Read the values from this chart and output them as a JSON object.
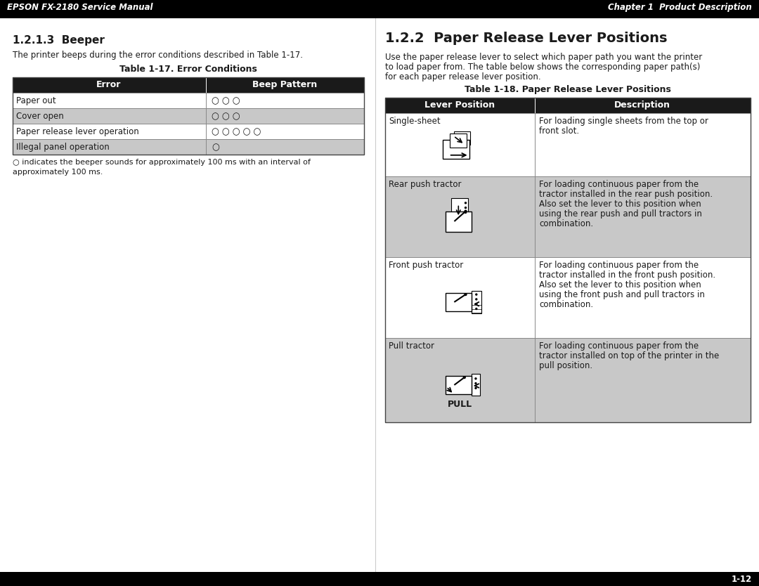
{
  "header_left": "EPSON FX-2180 Service Manual",
  "header_right": "Chapter 1  Product Description",
  "header_bg": "#000000",
  "header_fg": "#ffffff",
  "footer_text": "1-12",
  "footer_bg": "#000000",
  "footer_fg": "#ffffff",
  "page_bg": "#ffffff",
  "section1_title": "1.2.1.3  Beeper",
  "section1_body": "The printer beeps during the error conditions described in Table 1-17.",
  "table1_title": "Table 1-17. Error Conditions",
  "table1_header": [
    "Error",
    "Beep Pattern"
  ],
  "table1_rows": [
    [
      "Paper out",
      "○ ○ ○"
    ],
    [
      "Cover open",
      "○ ○ ○"
    ],
    [
      "Paper release lever operation",
      "○ ○ ○ ○ ○"
    ],
    [
      "Illegal panel operation",
      "○"
    ]
  ],
  "table1_row_bg": [
    "#ffffff",
    "#c8c8c8",
    "#ffffff",
    "#c8c8c8"
  ],
  "table1_note_line1": "○ indicates the beeper sounds for approximately 100 ms with an interval of",
  "table1_note_line2": "approximately 100 ms.",
  "section2_title": "1.2.2  Paper Release Lever Positions",
  "section2_body_line1": "Use the paper release lever to select which paper path you want the printer",
  "section2_body_line2": "to load paper from. The table below shows the corresponding paper path(s)",
  "section2_body_line3": "for each paper release lever position.",
  "table2_title": "Table 1-18. Paper Release Lever Positions",
  "table2_header": [
    "Lever Position",
    "Description"
  ],
  "table2_rows": [
    {
      "label": "Single-sheet",
      "desc_lines": [
        "For loading single sheets from the top or",
        "front slot."
      ],
      "bg": "#ffffff"
    },
    {
      "label": "Rear push tractor",
      "desc_lines": [
        "For loading continuous paper from the",
        "tractor installed in the rear push position.",
        "Also set the lever to this position when",
        "using the rear push and pull tractors in",
        "combination."
      ],
      "bg": "#c8c8c8"
    },
    {
      "label": "Front push tractor",
      "desc_lines": [
        "For loading continuous paper from the",
        "tractor installed in the front push position.",
        "Also set the lever to this position when",
        "using the front push and pull tractors in",
        "combination."
      ],
      "bg": "#ffffff"
    },
    {
      "label": "Pull tractor",
      "desc_lines": [
        "For loading continuous paper from the",
        "tractor installed on top of the printer in the",
        "pull position."
      ],
      "bg": "#c8c8c8"
    }
  ],
  "table_header_bg": "#1a1a1a",
  "table_header_fg": "#ffffff",
  "col_divider": "#888888",
  "table_border": "#444444"
}
